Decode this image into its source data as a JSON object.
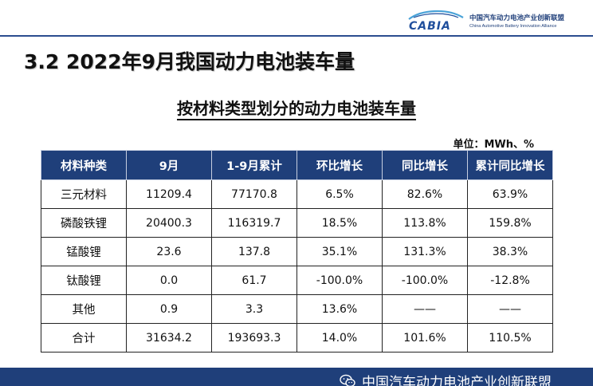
{
  "logo": {
    "mark_text": "CABIA",
    "name_cn": "中国汽车动力电池产业创新联盟",
    "name_en": "China Automotive Battery Innovation Alliance"
  },
  "section_title": "3.2 2022年9月我国动力电池装车量",
  "table_title": "按材料类型划分的动力电池装车量",
  "unit_note": "单位：MWh、%",
  "table": {
    "headers": [
      "材料种类",
      "9月",
      "1-9月累计",
      "环比增长",
      "同比增长",
      "累计同比增长"
    ],
    "rows": [
      [
        "三元材料",
        "11209.4",
        "77170.8",
        "6.5%",
        "82.6%",
        "63.9%"
      ],
      [
        "磷酸铁锂",
        "20400.3",
        "116319.7",
        "18.5%",
        "113.8%",
        "159.8%"
      ],
      [
        "锰酸锂",
        "23.6",
        "137.8",
        "35.1%",
        "131.3%",
        "38.3%"
      ],
      [
        "钛酸锂",
        "0.0",
        "61.7",
        "-100.0%",
        "-100.0%",
        "-12.8%"
      ],
      [
        "其他",
        "0.9",
        "3.3",
        "13.6%",
        "——",
        "——"
      ],
      [
        "合计",
        "31634.2",
        "193693.3",
        "14.0%",
        "101.6%",
        "110.5%"
      ]
    ]
  },
  "footer": {
    "text": "中国汽车动力电池产业创新联盟",
    "icon": "wechat-icon"
  },
  "colors": {
    "header_bg": "#1f3f7a",
    "accent": "#2c4d8f"
  }
}
